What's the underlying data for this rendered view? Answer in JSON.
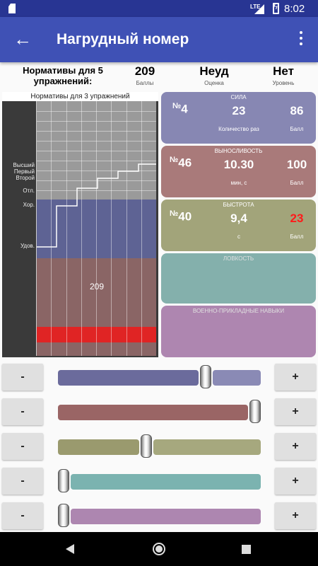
{
  "app_title": "Нагрудный номер",
  "status": {
    "time": "8:02",
    "network": "LTE"
  },
  "summary": {
    "label": "Нормативы для 5 упражнений:",
    "score": {
      "value": "209",
      "caption": "Баллы"
    },
    "grade": {
      "value": "Неуд",
      "caption": "Оценка"
    },
    "level": {
      "value": "Нет",
      "caption": "Уровень"
    }
  },
  "chart_data": {
    "type": "line",
    "title": "Нормативы для 3 упражнений",
    "value_label": "209",
    "y_levels": [
      "Высший",
      "Первый",
      "Второй",
      "Отл.",
      "Хор.",
      "Удов."
    ],
    "colors": {
      "grey": "#9a9a9a",
      "blue": "#5e6394",
      "mauve": "#8a6565",
      "red": "#e02424"
    }
  },
  "cards": [
    {
      "title": "СИЛА",
      "num_prefix": "№",
      "num": "4",
      "value": "23",
      "value_caption": "Количество раз",
      "score": "86",
      "score_caption": "Балл",
      "score_color": "#ffffff",
      "color": "#8787b3"
    },
    {
      "title": "ВЫНОСЛИВОСТЬ",
      "num_prefix": "№",
      "num": "46",
      "value": "10.30",
      "value_caption": "мин, с",
      "score": "100",
      "score_caption": "Балл",
      "score_color": "#ffffff",
      "color": "#a97a7a"
    },
    {
      "title": "БЫСТРОТА",
      "num_prefix": "№",
      "num": "40",
      "value": "9,4",
      "value_caption": "с",
      "score": "23",
      "score_caption": "Балл",
      "score_color": "#ff1a1a",
      "color": "#a2a47a"
    },
    {
      "title": "ЛОВКОСТЬ",
      "color": "#84b0ac"
    },
    {
      "title": "ВОЕННО-ПРИКЛАДНЫЕ НАВЫКИ",
      "color": "#ae86b0"
    }
  ],
  "sliders": [
    {
      "minus": "-",
      "plus": "+",
      "level": 0.74,
      "filled_color": "#6b6b9c",
      "empty_color": "#8a8ab5"
    },
    {
      "minus": "-",
      "plus": "+",
      "level": 1.0,
      "filled_color": "#9a6565",
      "empty_color": "#9a6565"
    },
    {
      "minus": "-",
      "plus": "+",
      "level": 0.43,
      "filled_color": "#9a9a6e",
      "empty_color": "#a6a87e"
    },
    {
      "minus": "-",
      "plus": "+",
      "level": 0.0,
      "filled_color": "#7bb3b0",
      "empty_color": "#7bb3b0"
    },
    {
      "minus": "-",
      "plus": "+",
      "level": 0.0,
      "filled_color": "#ad86b0",
      "empty_color": "#ad86b0"
    }
  ]
}
